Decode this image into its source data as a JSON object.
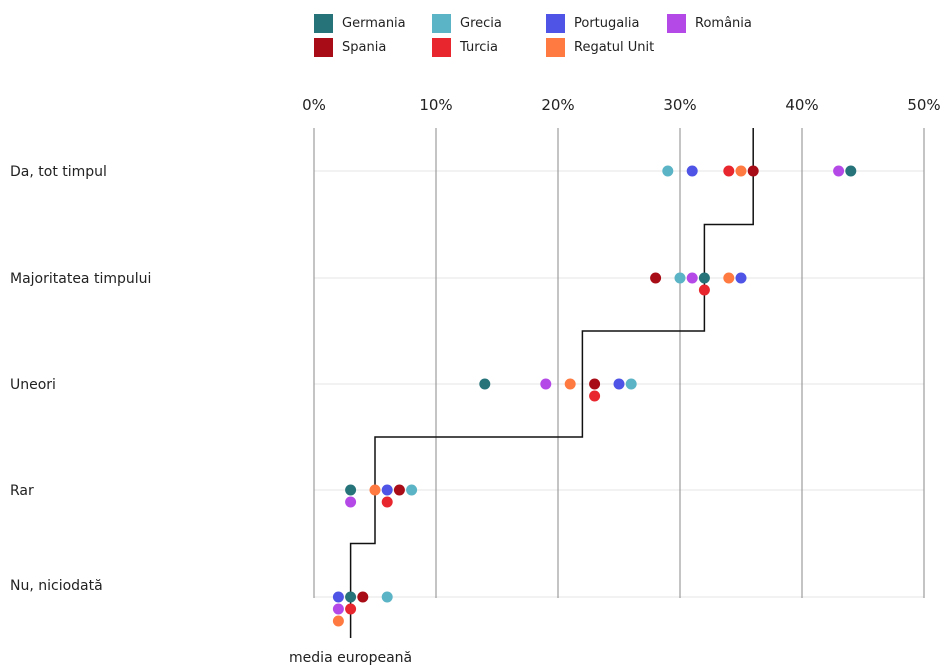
{
  "chart_data": {
    "type": "scatter",
    "categories": [
      "Da, tot timpul",
      "Majoritatea timpului",
      "Uneori",
      "Rar",
      "Nu, niciodată"
    ],
    "x_ticks": [
      "0%",
      "10%",
      "20%",
      "30%",
      "40%",
      "50%"
    ],
    "xlim": [
      0,
      50
    ],
    "grid": true,
    "legend_position": "top",
    "series": [
      {
        "name": "Germania",
        "color": "#26737a",
        "values": [
          44,
          32,
          14,
          3,
          3
        ]
      },
      {
        "name": "Grecia",
        "color": "#5ab4c5",
        "values": [
          29,
          30,
          26,
          8,
          6
        ]
      },
      {
        "name": "Portugalia",
        "color": "#4f54e6",
        "values": [
          31,
          35,
          25,
          6,
          2
        ]
      },
      {
        "name": "România",
        "color": "#b449e8",
        "values": [
          43,
          31,
          19,
          3,
          2
        ]
      },
      {
        "name": "Spania",
        "color": "#a80d17",
        "values": [
          36,
          28,
          23,
          7,
          4
        ]
      },
      {
        "name": "Turcia",
        "color": "#e8262e",
        "values": [
          34,
          32,
          23,
          6,
          3
        ]
      },
      {
        "name": "Regatul Unit",
        "color": "#ff7a40",
        "values": [
          35,
          34,
          21,
          5,
          2
        ]
      }
    ],
    "european_average": {
      "label": "media europeană",
      "values": [
        36,
        32,
        22,
        5,
        3
      ]
    }
  }
}
